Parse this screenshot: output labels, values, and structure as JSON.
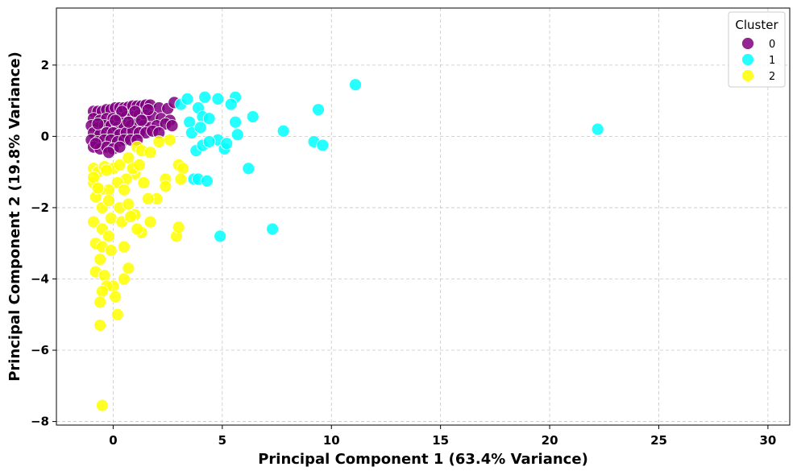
{
  "chart_data": {
    "type": "scatter",
    "xlabel": "Principal Component 1 (63.4% Variance)",
    "ylabel": "Principal Component 2 (19.8% Variance)",
    "xlim": [
      -2.6,
      31
    ],
    "ylim": [
      -8.1,
      3.6
    ],
    "xticks": [
      0,
      5,
      10,
      15,
      20,
      25,
      30
    ],
    "yticks": [
      -8,
      -6,
      -4,
      -2,
      0,
      2
    ],
    "grid": true,
    "legend": {
      "title": "Cluster",
      "placement": "top-right",
      "entries": [
        "0",
        "1",
        "2"
      ]
    },
    "series": [
      {
        "name": "0",
        "color": "#800080",
        "points": [
          [
            -0.9,
            0.7
          ],
          [
            -0.7,
            0.7
          ],
          [
            -0.5,
            0.7
          ],
          [
            -0.3,
            0.75
          ],
          [
            -0.1,
            0.75
          ],
          [
            0.1,
            0.8
          ],
          [
            0.3,
            0.8
          ],
          [
            0.5,
            0.8
          ],
          [
            0.7,
            0.82
          ],
          [
            0.9,
            0.85
          ],
          [
            1.1,
            0.85
          ],
          [
            1.3,
            0.85
          ],
          [
            1.5,
            0.88
          ],
          [
            1.7,
            0.88
          ],
          [
            2.1,
            0.8
          ],
          [
            2.5,
            0.78
          ],
          [
            2.8,
            0.95
          ],
          [
            -0.9,
            0.5
          ],
          [
            -0.6,
            0.45
          ],
          [
            -0.3,
            0.5
          ],
          [
            0,
            0.5
          ],
          [
            0.3,
            0.5
          ],
          [
            0.6,
            0.55
          ],
          [
            0.9,
            0.55
          ],
          [
            1.2,
            0.6
          ],
          [
            1.5,
            0.6
          ],
          [
            1.8,
            0.55
          ],
          [
            2.2,
            0.5
          ],
          [
            2.6,
            0.45
          ],
          [
            -1.0,
            0.3
          ],
          [
            -0.7,
            0.25
          ],
          [
            -0.4,
            0.3
          ],
          [
            -0.1,
            0.3
          ],
          [
            0.2,
            0.25
          ],
          [
            0.5,
            0.3
          ],
          [
            0.8,
            0.3
          ],
          [
            1.1,
            0.35
          ],
          [
            1.4,
            0.3
          ],
          [
            1.7,
            0.25
          ],
          [
            2.0,
            0.3
          ],
          [
            2.4,
            0.35
          ],
          [
            2.7,
            0.3
          ],
          [
            -0.9,
            0.1
          ],
          [
            -0.6,
            0.05
          ],
          [
            -0.3,
            0.1
          ],
          [
            0,
            0.1
          ],
          [
            0.3,
            0.05
          ],
          [
            0.6,
            0.1
          ],
          [
            0.9,
            0.15
          ],
          [
            1.2,
            0.1
          ],
          [
            1.5,
            0.1
          ],
          [
            1.8,
            0.15
          ],
          [
            2.1,
            0.1
          ],
          [
            -1.0,
            -0.1
          ],
          [
            -0.7,
            -0.15
          ],
          [
            -0.4,
            -0.1
          ],
          [
            -0.1,
            -0.1
          ],
          [
            0.2,
            -0.15
          ],
          [
            0.5,
            -0.1
          ],
          [
            0.8,
            -0.1
          ],
          [
            1.1,
            -0.1
          ],
          [
            -0.9,
            -0.3
          ],
          [
            -0.6,
            -0.35
          ],
          [
            -0.3,
            -0.3
          ],
          [
            0,
            -0.35
          ],
          [
            0.3,
            -0.3
          ],
          [
            -0.8,
            -0.2
          ],
          [
            -0.2,
            -0.45
          ],
          [
            0.4,
            0.7
          ],
          [
            1.0,
            0.7
          ],
          [
            1.6,
            0.75
          ],
          [
            -0.7,
            0.35
          ],
          [
            0.1,
            0.45
          ],
          [
            0.7,
            0.4
          ],
          [
            1.3,
            0.45
          ]
        ]
      },
      {
        "name": "1",
        "color": "#00ffff",
        "points": [
          [
            3.1,
            0.9
          ],
          [
            3.4,
            1.05
          ],
          [
            4.2,
            1.1
          ],
          [
            4.8,
            1.05
          ],
          [
            5.6,
            1.1
          ],
          [
            5.4,
            0.9
          ],
          [
            3.5,
            0.4
          ],
          [
            3.9,
            0.8
          ],
          [
            4.1,
            0.55
          ],
          [
            4.4,
            0.5
          ],
          [
            5.6,
            0.4
          ],
          [
            6.4,
            0.55
          ],
          [
            3.6,
            0.1
          ],
          [
            4.0,
            0.25
          ],
          [
            4.8,
            -0.1
          ],
          [
            5.1,
            -0.35
          ],
          [
            5.2,
            -0.2
          ],
          [
            5.7,
            0.05
          ],
          [
            3.8,
            -0.4
          ],
          [
            4.1,
            -0.25
          ],
          [
            4.4,
            -0.15
          ],
          [
            3.7,
            -1.2
          ],
          [
            3.9,
            -1.2
          ],
          [
            4.3,
            -1.25
          ],
          [
            4.9,
            -2.8
          ],
          [
            6.2,
            -0.9
          ],
          [
            7.3,
            -2.6
          ],
          [
            7.8,
            0.15
          ],
          [
            9.2,
            -0.15
          ],
          [
            9.4,
            0.75
          ],
          [
            9.6,
            -0.25
          ],
          [
            11.1,
            1.45
          ],
          [
            22.2,
            0.2
          ]
        ]
      },
      {
        "name": "2",
        "color": "#ffff00",
        "points": [
          [
            -0.9,
            -0.9
          ],
          [
            -0.7,
            -1.0
          ],
          [
            -0.4,
            -0.85
          ],
          [
            0,
            -0.9
          ],
          [
            0.3,
            -0.8
          ],
          [
            0.7,
            -0.6
          ],
          [
            1.1,
            -0.3
          ],
          [
            1.3,
            -0.4
          ],
          [
            1.7,
            -0.45
          ],
          [
            2.1,
            -0.15
          ],
          [
            2.6,
            -0.1
          ],
          [
            3.0,
            -0.8
          ],
          [
            3.2,
            -0.9
          ],
          [
            3.1,
            -1.2
          ],
          [
            2.4,
            -1.2
          ],
          [
            2.4,
            -1.4
          ],
          [
            2.0,
            -1.75
          ],
          [
            1.6,
            -1.75
          ],
          [
            1.4,
            -1.3
          ],
          [
            1.0,
            -1.05
          ],
          [
            0.6,
            -1.2
          ],
          [
            0.2,
            -1.3
          ],
          [
            -0.2,
            -1.5
          ],
          [
            -0.6,
            -1.5
          ],
          [
            -0.9,
            -1.3
          ],
          [
            -0.8,
            -1.7
          ],
          [
            -0.5,
            -2.0
          ],
          [
            -0.1,
            -2.3
          ],
          [
            0.3,
            -2.0
          ],
          [
            0.7,
            -1.9
          ],
          [
            1.0,
            -2.2
          ],
          [
            1.3,
            -2.7
          ],
          [
            1.7,
            -2.4
          ],
          [
            -0.9,
            -2.4
          ],
          [
            -0.5,
            -2.6
          ],
          [
            -0.2,
            -2.8
          ],
          [
            -0.8,
            -3.0
          ],
          [
            -0.5,
            -3.1
          ],
          [
            -0.1,
            -3.2
          ],
          [
            0.5,
            -3.1
          ],
          [
            1.1,
            -2.6
          ],
          [
            2.9,
            -2.8
          ],
          [
            3.0,
            -2.55
          ],
          [
            -0.6,
            -3.45
          ],
          [
            -0.8,
            -3.8
          ],
          [
            -0.4,
            -3.9
          ],
          [
            0,
            -4.2
          ],
          [
            0.5,
            -4.0
          ],
          [
            0.7,
            -3.7
          ],
          [
            -0.3,
            -4.2
          ],
          [
            -0.5,
            -4.35
          ],
          [
            -0.6,
            -4.65
          ],
          [
            0.1,
            -4.5
          ],
          [
            0.2,
            -5.0
          ],
          [
            -0.6,
            -5.3
          ],
          [
            -0.5,
            -7.55
          ],
          [
            -0.9,
            -1.15
          ],
          [
            -0.7,
            -1.45
          ],
          [
            -0.3,
            -0.95
          ],
          [
            0.9,
            -0.9
          ],
          [
            1.2,
            -0.8
          ],
          [
            0.5,
            -1.5
          ],
          [
            -0.2,
            -1.8
          ],
          [
            0.4,
            -2.4
          ],
          [
            0.8,
            -2.25
          ]
        ]
      }
    ]
  }
}
